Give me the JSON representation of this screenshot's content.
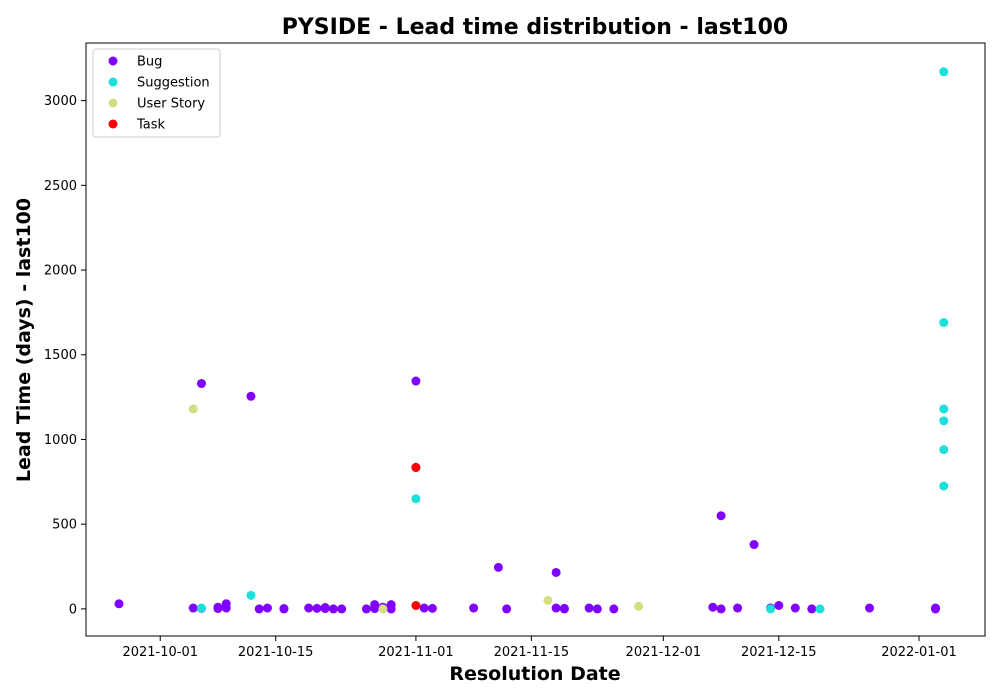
{
  "chart_data": {
    "type": "scatter",
    "title": "PYSIDE - Lead time distribution - last100",
    "xlabel": "Resolution Date",
    "ylabel": "Lead Time (days) - last100",
    "x_type": "date",
    "xlim": [
      "2021-09-22",
      "2022-01-09"
    ],
    "ylim": [
      -160,
      3340
    ],
    "x_ticks": [
      "2021-10-01",
      "2021-10-15",
      "2021-11-01",
      "2021-11-15",
      "2021-12-01",
      "2021-12-15",
      "2022-01-01"
    ],
    "y_ticks": [
      0,
      500,
      1000,
      1500,
      2000,
      2500,
      3000
    ],
    "grid": false,
    "legend_position": "top-left",
    "series": [
      {
        "name": "Bug",
        "color": "#8000ff",
        "points": [
          [
            "2021-09-26",
            30
          ],
          [
            "2021-10-05",
            5
          ],
          [
            "2021-10-06",
            3
          ],
          [
            "2021-10-06",
            1330
          ],
          [
            "2021-10-08",
            2
          ],
          [
            "2021-10-08",
            10
          ],
          [
            "2021-10-09",
            5
          ],
          [
            "2021-10-09",
            30
          ],
          [
            "2021-10-12",
            1255
          ],
          [
            "2021-10-13",
            0
          ],
          [
            "2021-10-14",
            5
          ],
          [
            "2021-10-16",
            0
          ],
          [
            "2021-10-16",
            2
          ],
          [
            "2021-10-19",
            5
          ],
          [
            "2021-10-20",
            3
          ],
          [
            "2021-10-21",
            8
          ],
          [
            "2021-10-21",
            2
          ],
          [
            "2021-10-22",
            0
          ],
          [
            "2021-10-23",
            0
          ],
          [
            "2021-10-26",
            0
          ],
          [
            "2021-10-27",
            2
          ],
          [
            "2021-10-27",
            25
          ],
          [
            "2021-10-28",
            10
          ],
          [
            "2021-10-29",
            25
          ],
          [
            "2021-10-29",
            0
          ],
          [
            "2021-11-01",
            1345
          ],
          [
            "2021-11-01",
            835
          ],
          [
            "2021-11-02",
            5
          ],
          [
            "2021-11-03",
            3
          ],
          [
            "2021-11-08",
            5
          ],
          [
            "2021-11-11",
            245
          ],
          [
            "2021-11-12",
            0
          ],
          [
            "2021-11-18",
            215
          ],
          [
            "2021-11-18",
            5
          ],
          [
            "2021-11-19",
            0
          ],
          [
            "2021-11-19",
            3
          ],
          [
            "2021-11-22",
            5
          ],
          [
            "2021-11-23",
            0
          ],
          [
            "2021-11-25",
            0
          ],
          [
            "2021-12-07",
            10
          ],
          [
            "2021-12-08",
            0
          ],
          [
            "2021-12-08",
            550
          ],
          [
            "2021-12-10",
            5
          ],
          [
            "2021-12-12",
            380
          ],
          [
            "2021-12-14",
            5
          ],
          [
            "2021-12-15",
            20
          ],
          [
            "2021-12-17",
            5
          ],
          [
            "2021-12-19",
            0
          ],
          [
            "2021-12-26",
            5
          ],
          [
            "2022-01-03",
            0
          ],
          [
            "2022-01-03",
            5
          ]
        ]
      },
      {
        "name": "Suggestion",
        "color": "#1cdfda",
        "points": [
          [
            "2021-10-06",
            5
          ],
          [
            "2021-10-12",
            80
          ],
          [
            "2021-11-01",
            650
          ],
          [
            "2021-12-14",
            0
          ],
          [
            "2021-12-20",
            0
          ],
          [
            "2022-01-04",
            3170
          ],
          [
            "2022-01-04",
            1690
          ],
          [
            "2022-01-04",
            1180
          ],
          [
            "2022-01-04",
            1110
          ],
          [
            "2022-01-04",
            940
          ],
          [
            "2022-01-04",
            725
          ]
        ]
      },
      {
        "name": "User Story",
        "color": "#d4dd80",
        "points": [
          [
            "2021-10-05",
            1180
          ],
          [
            "2021-10-28",
            0
          ],
          [
            "2021-11-17",
            50
          ],
          [
            "2021-11-28",
            15
          ]
        ]
      },
      {
        "name": "Task",
        "color": "#ff0000",
        "points": [
          [
            "2021-11-01",
            835
          ],
          [
            "2021-11-01",
            20
          ]
        ]
      }
    ]
  }
}
